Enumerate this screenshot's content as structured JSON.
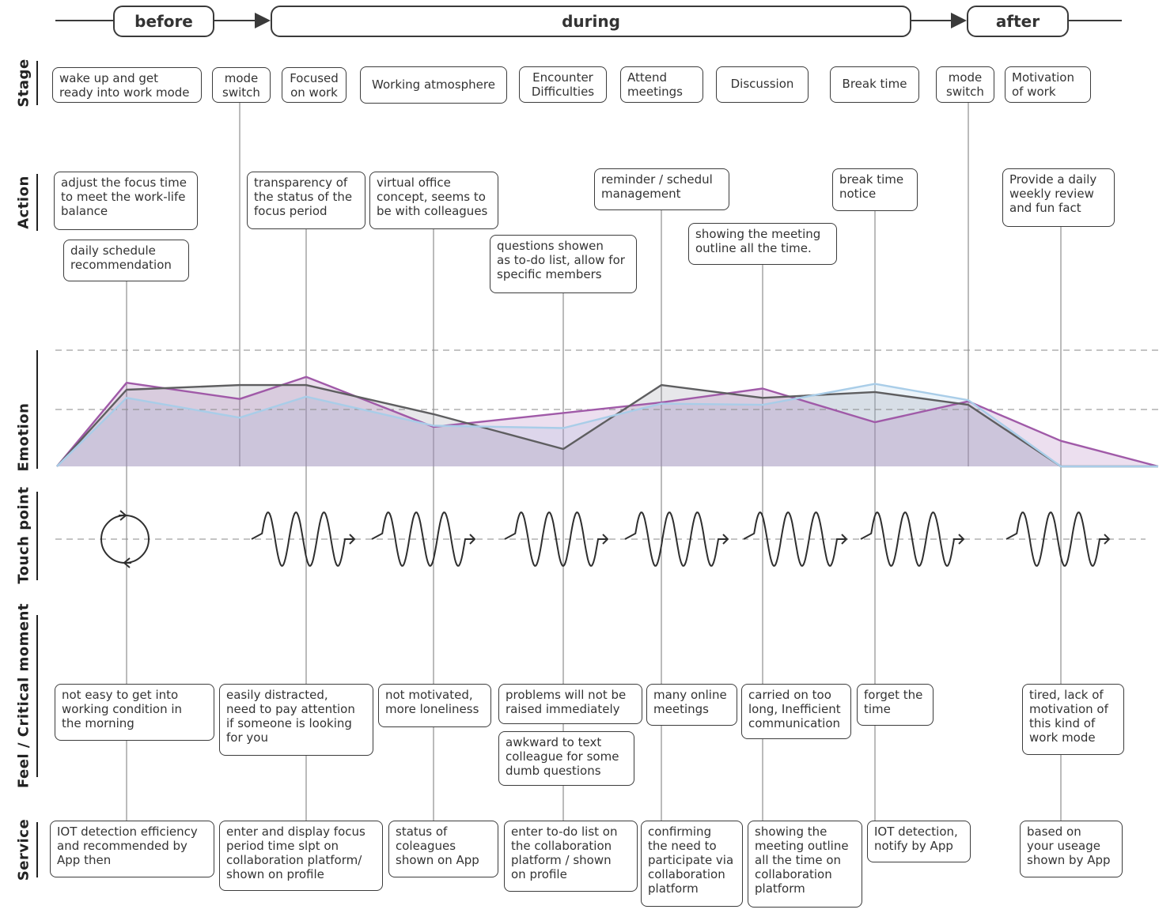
{
  "phases": {
    "before": "before",
    "during": "during",
    "after": "after"
  },
  "row_labels": {
    "stage": "Stage",
    "action": "Action",
    "emotion": "Emotion",
    "touchpoint": "Touch point",
    "feel": "Feel / Critical moment",
    "service": "Service"
  },
  "stages": [
    "wake up and get\nready into work mode",
    "mode\nswitch",
    "Focused\non work",
    "Working atmosphere",
    "Encounter\nDifficulties",
    "Attend\nmeetings",
    "Discussion",
    "Break time",
    "mode\nswitch",
    "Motivation\nof work"
  ],
  "actions": [
    "adjust the focus time\nto meet the work-life\nbalance",
    "daily schedule\nrecommendation",
    "transparency of\nthe status of the\nfocus period",
    "virtual office\nconcept, seems to\nbe with colleagues",
    "questions showen\nas to-do list, allow for\nspecific members",
    "reminder / schedul\nmanagement",
    "showing the meeting\noutline all the time.",
    "break time\nnotice",
    "Provide a daily\nweekly review\nand fun fact"
  ],
  "feels": [
    "not easy to get into\nworking condition in\nthe morning",
    "easily distracted,\nneed to pay attention\nif someone is looking\nfor you",
    "not motivated,\nmore loneliness",
    "problems will not be\nraised immediately",
    "awkward  to text\ncolleague for some\ndumb questions",
    "many online\nmeetings",
    "carried on too\nlong, Inefficient\ncommunication",
    "forget the\ntime",
    "tired, lack of\nmotivation of\nthis kind of\nwork mode"
  ],
  "services": [
    "IOT detection efficiency\nand recommended by\nApp then",
    "enter and display focus\nperiod time slpt  on\ncollaboration platform/\nshown on profile",
    "status of\ncoleagues\nshown on App",
    "enter to-do list on\nthe collaboration\nplatform / shown\non profile",
    "confirming\nthe need to\nparticipate via\ncollaboration\nplatform",
    "showing the\nmeeting outline\nall the time on\ncollaboration\nplatform",
    "IOT detection,\nnotify by App",
    "based on\nyour useage\nshown by App"
  ],
  "chart_data": {
    "type": "area",
    "x": [
      0,
      1,
      2,
      3,
      4,
      5,
      6,
      7,
      8,
      9,
      10,
      11,
      12
    ],
    "series": [
      {
        "values": [
          0,
          0.72,
          0.58,
          0.77,
          0.34,
          0.46,
          0.55,
          0.67,
          0.38,
          0.56,
          0.22,
          0,
          0
        ],
        "color": "#a05aa8"
      },
      {
        "values": [
          0,
          0.66,
          0.7,
          0.7,
          0.45,
          0.15,
          0.7,
          0.59,
          0.64,
          0.53,
          0,
          0,
          0
        ],
        "color": "#5e5e60"
      },
      {
        "values": [
          0,
          0.59,
          0.42,
          0.6,
          0.35,
          0.33,
          0.54,
          0.53,
          0.71,
          0.57,
          0,
          0,
          0
        ],
        "color": "#a9cde8"
      }
    ],
    "grid": "dashed reference lines"
  }
}
